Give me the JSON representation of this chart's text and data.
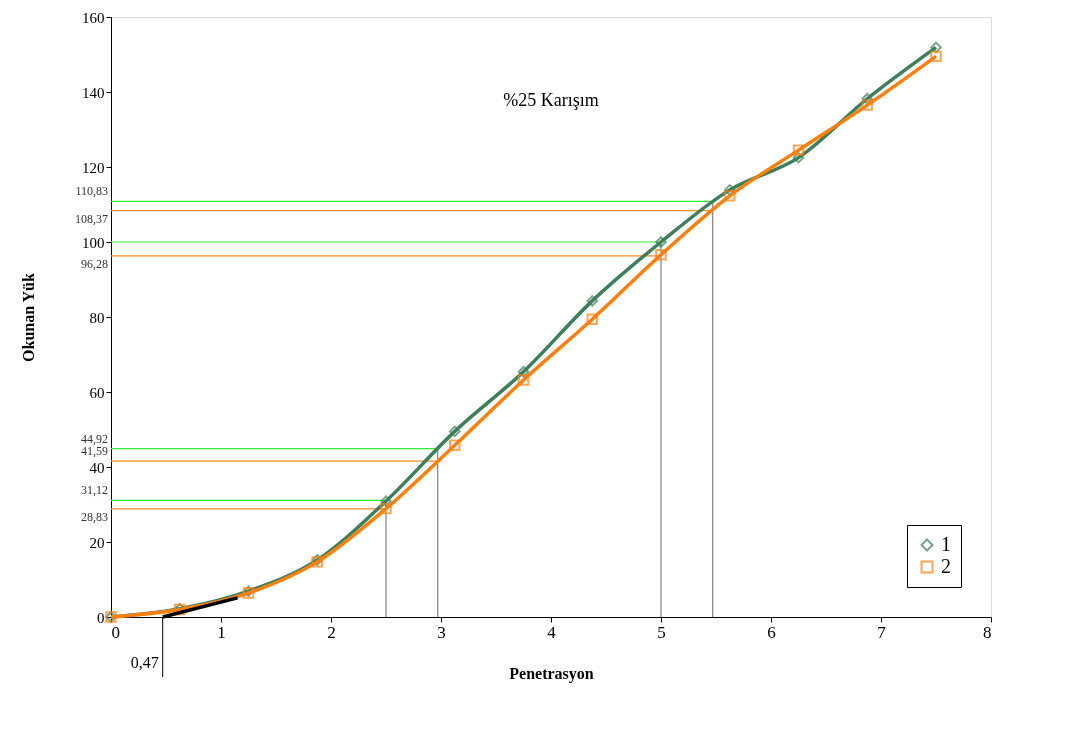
{
  "chart_data": {
    "type": "line",
    "title": "%25 Karışım",
    "xlabel": "Penetrasyon",
    "ylabel": "Okunan Yük",
    "x": [
      0,
      0.625,
      1.25,
      1.875,
      2.5,
      3.125,
      3.75,
      4.375,
      5.0,
      5.625,
      6.25,
      6.875,
      7.5
    ],
    "series": [
      {
        "name": "1",
        "color": "#3c7f5a",
        "marker": "diamond",
        "values": [
          0,
          2.2,
          6.9,
          15.2,
          30.9,
          49.5,
          65.4,
          84.3,
          100.0,
          113.9,
          122.5,
          138.2,
          151.9
        ]
      },
      {
        "name": "2",
        "color": "#ff7f0e",
        "marker": "square",
        "values": [
          0,
          2.0,
          6.4,
          14.7,
          28.9,
          45.8,
          63.2,
          79.4,
          96.6,
          112.3,
          124.5,
          136.5,
          149.5
        ]
      },
      {
        "color": "#000000",
        "marker": "none",
        "x": [
          0.47,
          1.15
        ],
        "values": [
          0,
          5.1
        ]
      }
    ],
    "xlim": [
      0,
      8
    ],
    "xticks": [
      0,
      1,
      2,
      3,
      4,
      5,
      6,
      7,
      8
    ],
    "ylim": [
      0,
      160
    ],
    "yticks": [
      0,
      20,
      40,
      60,
      80,
      100,
      120,
      140,
      160
    ],
    "ref_lines": [
      {
        "axis": "y",
        "value": 110.83,
        "label": "110,83",
        "color": "#33ee33"
      },
      {
        "axis": "y",
        "value": 108.37,
        "label": "108,37",
        "color": "#ff8c28"
      },
      {
        "axis": "y",
        "value": 100,
        "color": "#33ee33"
      },
      {
        "axis": "y",
        "value": 96.28,
        "label": "96,28",
        "color": "#ff8c28"
      },
      {
        "axis": "y",
        "value": 44.92,
        "label": "44,92",
        "color": "#33ee33"
      },
      {
        "axis": "y",
        "value": 41.59,
        "label": "41,59",
        "color": "#ff8c28"
      },
      {
        "axis": "y",
        "value": 31.12,
        "label": "31,12",
        "color": "#33ee33"
      },
      {
        "axis": "y",
        "value": 28.83,
        "label": "28,83",
        "color": "#ff8c28"
      },
      {
        "axis": "x",
        "value": 2.5,
        "color": "#808080"
      },
      {
        "axis": "x",
        "value": 2.97,
        "color": "#808080"
      },
      {
        "axis": "x",
        "value": 5.0,
        "color": "#808080"
      },
      {
        "axis": "x",
        "value": 5.47,
        "color": "#808080"
      }
    ],
    "annotations": [
      {
        "text": "0,47",
        "x": 0.47,
        "y": 0
      }
    ],
    "legend": "bottom right",
    "grid": false,
    "line_style": "solid"
  }
}
